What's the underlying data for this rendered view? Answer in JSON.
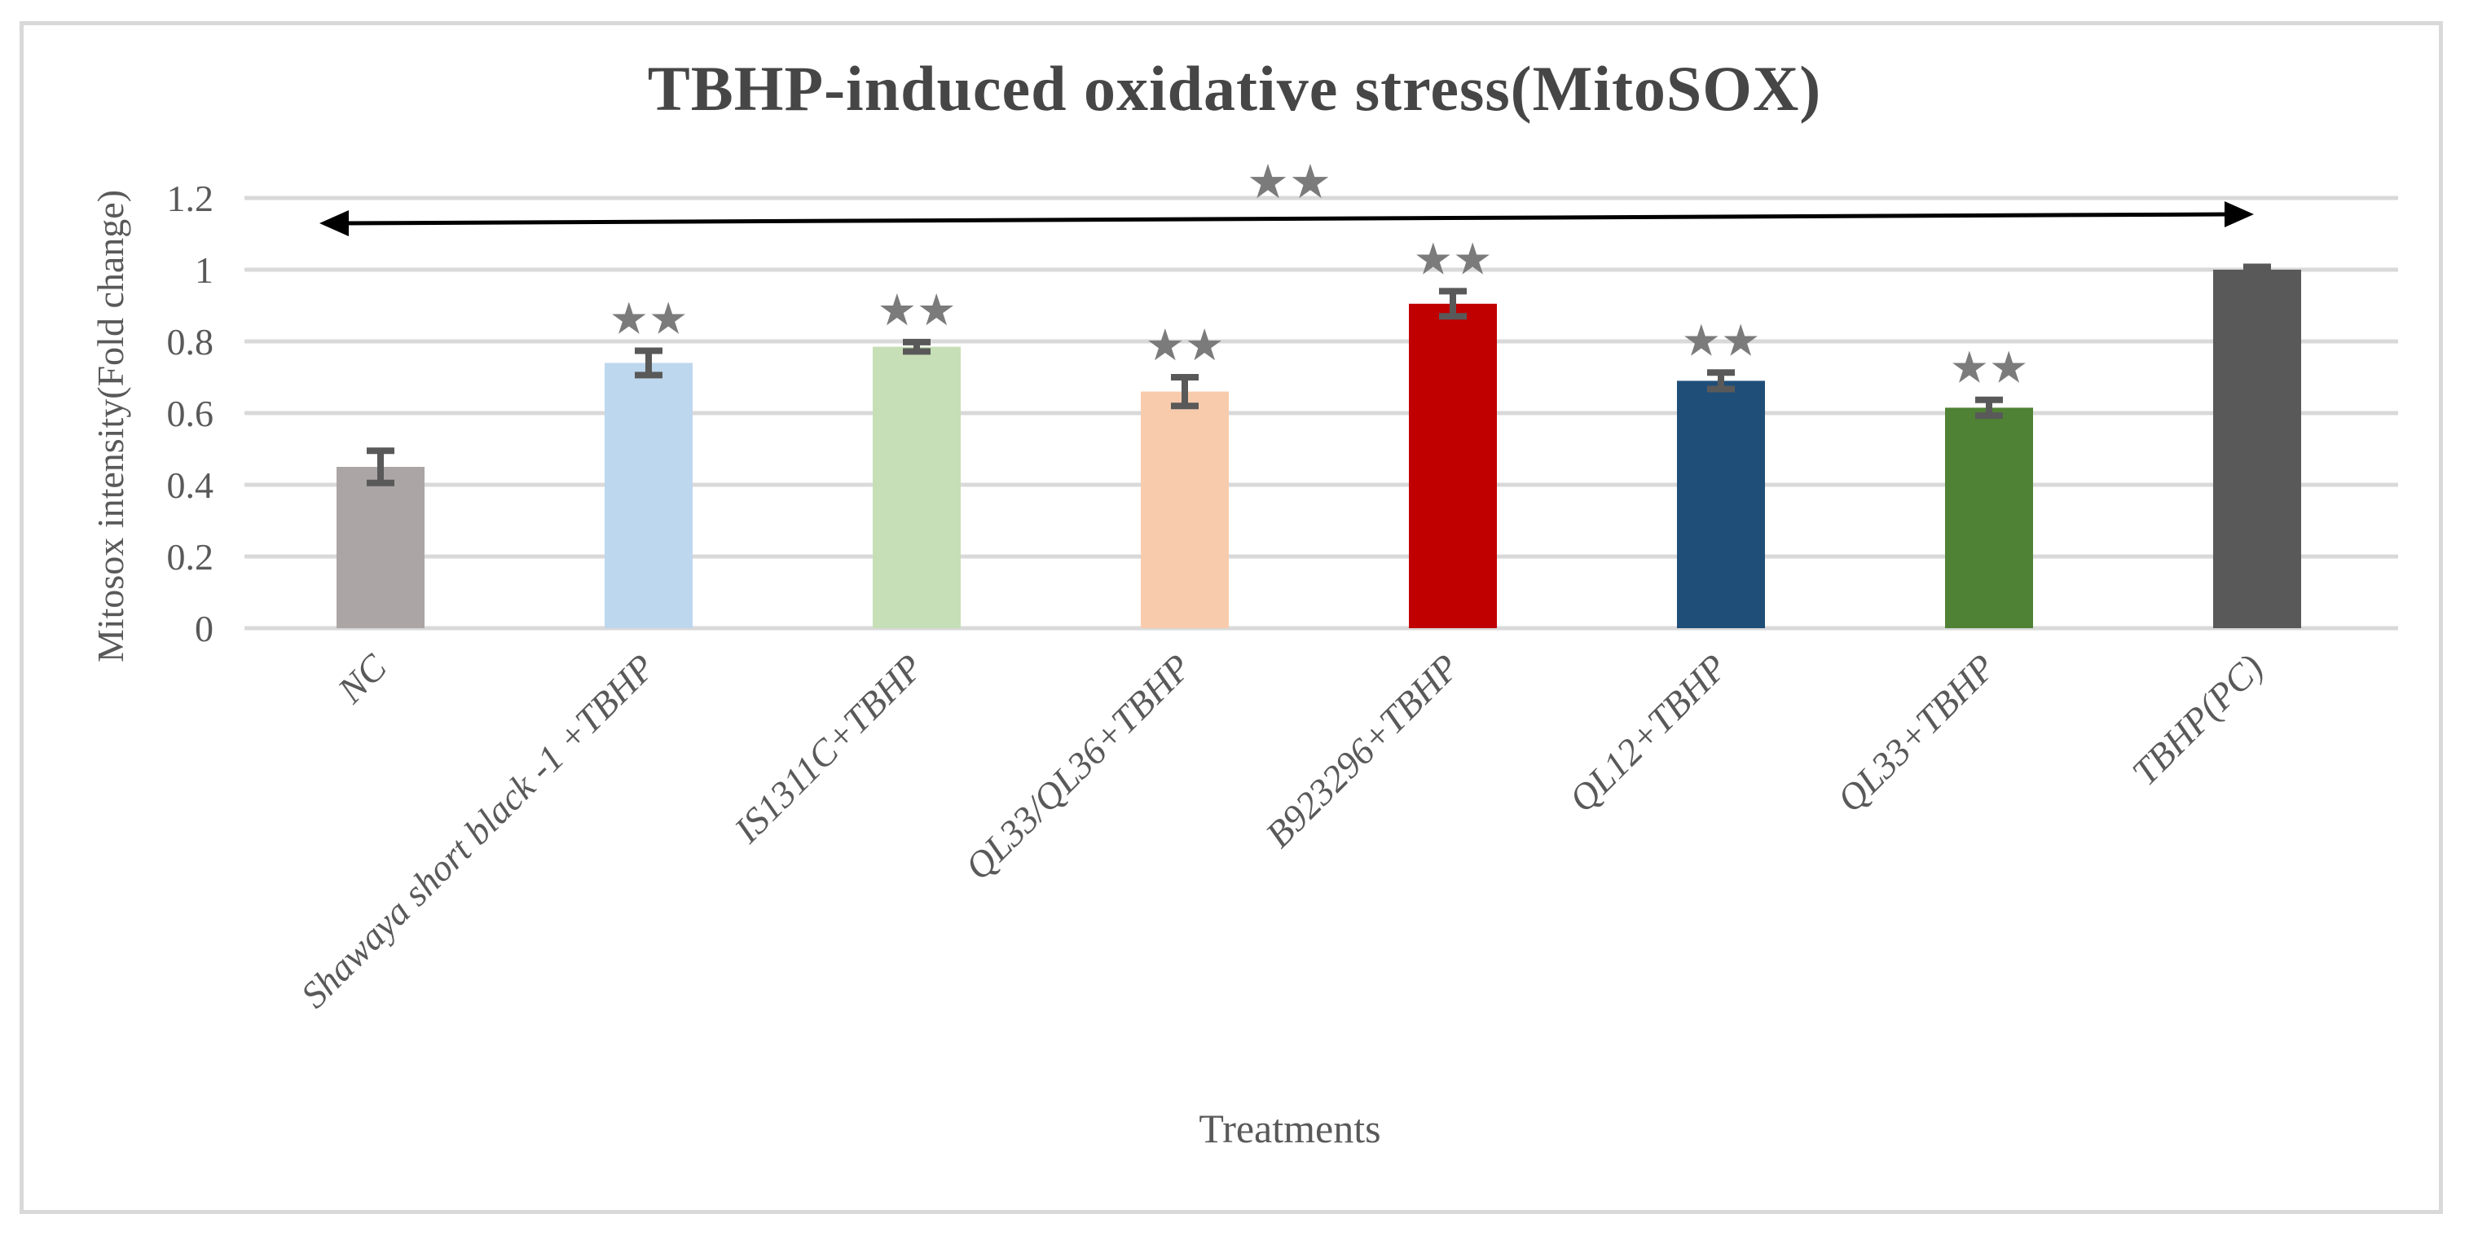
{
  "figure": {
    "background": "#ffffff",
    "border_color": "#d9d9d9"
  },
  "chart_data": {
    "type": "bar",
    "title": "TBHP-induced oxidative stress(MitoSOX)",
    "xlabel": "Treatments",
    "ylabel": "Mitosox intensity(Fold change)",
    "categories": [
      "NC",
      "Shawaya short black -1 +TBHP",
      "IS1311C+TBHP",
      "QL33/QL36+TBHP",
      "B923296+TBHP",
      "QL12+TBHP",
      "QL33+TBHP",
      "TBHP(PC)"
    ],
    "values": [
      0.45,
      0.74,
      0.785,
      0.66,
      0.905,
      0.69,
      0.615,
      1.0
    ],
    "errors": [
      0.045,
      0.034,
      0.013,
      0.04,
      0.035,
      0.023,
      0.022,
      0.008
    ],
    "bar_colors": [
      "#aba5a5",
      "#bdd7ee",
      "#c6dfb6",
      "#f8cbad",
      "#c00000",
      "#1f4e79",
      "#4f8234",
      "#595959"
    ],
    "significance": [
      "",
      "★★",
      "★★",
      "★★",
      "★★",
      "★★",
      "★★",
      ""
    ],
    "ylim": [
      0,
      1.2
    ],
    "yticks": [
      {
        "value": 0,
        "label": "0"
      },
      {
        "value": 0.2,
        "label": "0.2"
      },
      {
        "value": 0.4,
        "label": "0.4"
      },
      {
        "value": 0.6,
        "label": "0.6"
      },
      {
        "value": 0.8,
        "label": "0.8"
      },
      {
        "value": 1,
        "label": "1"
      },
      {
        "value": 1.2,
        "label": "1.2"
      }
    ],
    "grid": "horizontal",
    "legend": "none",
    "annotation": {
      "type": "double-headed-arrow",
      "label": "★★",
      "from_category": "NC",
      "to_category": "TBHP(PC)"
    },
    "colors": {
      "gridline": "#d9d9d9",
      "error_bar": "#595959",
      "stars": "#7b7b7b",
      "axis_text": "#595959",
      "title_text": "#464646",
      "arrow": "#000000"
    }
  }
}
